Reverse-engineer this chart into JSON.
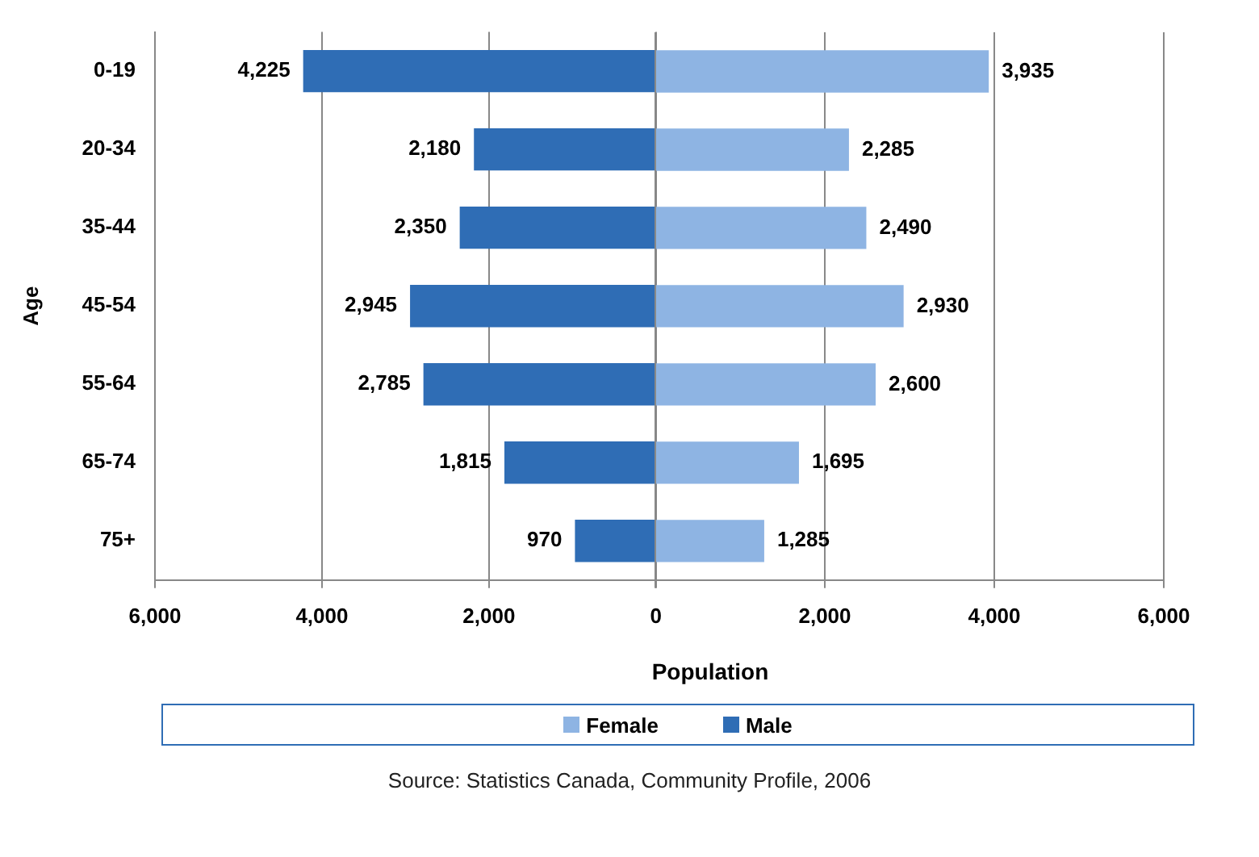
{
  "chart_data": [
    {
      "type": "bar",
      "orientation": "horizontal",
      "categories": [
        "0-19",
        "20-34",
        "35-44",
        "45-54",
        "55-64",
        "65-74",
        "75+"
      ],
      "series": [
        {
          "name": "Male",
          "color": "#2f6db5",
          "values": [
            4225,
            2180,
            2350,
            2945,
            2785,
            1815,
            970
          ],
          "value_labels": [
            "4,225",
            "2,180",
            "2,350",
            "2,945",
            "2,785",
            "1,815",
            "970"
          ]
        }
      ],
      "xlim": [
        6000,
        0
      ],
      "xticks": [
        {
          "value": 6000,
          "label": "6,000"
        },
        {
          "value": 4000,
          "label": "4,000"
        },
        {
          "value": 2000,
          "label": "2,000"
        },
        0
      ],
      "xlabel": "Population",
      "ylabel": "Age",
      "grid": "x",
      "legend": "bottom",
      "annotations": [
        "Source: Statistics Canada, Community Profile, 2006"
      ]
    },
    {
      "type": "bar",
      "orientation": "horizontal",
      "series": [
        {
          "name": "Female",
          "color": "#8eb4e3",
          "values": [
            3935,
            2285,
            2490,
            2930,
            2600,
            1695,
            1285
          ],
          "value_labels": [
            "3,935",
            "2,285",
            "2,490",
            "2,930",
            "2,600",
            "1,695",
            "1,285"
          ]
        }
      ],
      "xlim": [
        0,
        6000
      ],
      "xticks": [
        {
          "value": 0,
          "label": null
        },
        {
          "value": 2000,
          "label": "2,000"
        },
        {
          "value": 4000,
          "label": "4,000"
        },
        {
          "value": 6000,
          "label": "6,000"
        }
      ],
      "grid": "x",
      "legend": "bottom",
      "tick_labels": "x"
    }
  ]
}
